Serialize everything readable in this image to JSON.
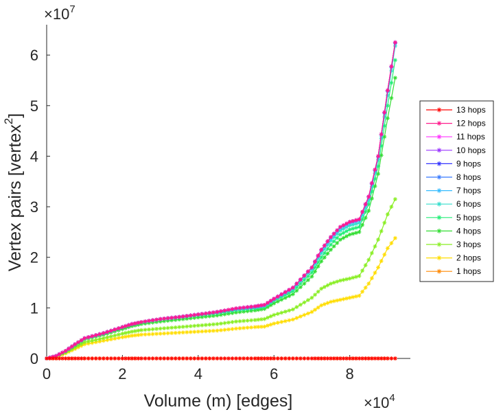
{
  "chart_data": {
    "type": "line",
    "title": "",
    "xlabel": "Volume (m) [edges]",
    "ylabel": "Vertex pairs [vertex",
    "ylabel_superscript": "2",
    "ylabel_close": "]",
    "x_exponent_label": "×10",
    "x_exponent": "4",
    "y_exponent_label": "×10",
    "y_exponent": "7",
    "xlim": [
      0,
      9.6
    ],
    "ylim": [
      0,
      6.6
    ],
    "x_ticks": [
      0,
      2,
      4,
      6,
      8
    ],
    "x_tick_labels": [
      "0",
      "2",
      "4",
      "6",
      "8"
    ],
    "y_ticks": [
      0,
      1,
      2,
      3,
      4,
      5,
      6
    ],
    "y_tick_labels": [
      "0",
      "1",
      "2",
      "3",
      "4",
      "5",
      "6"
    ],
    "grid": false,
    "legend_position": "right",
    "x": [
      0,
      0.25,
      0.5,
      0.75,
      1.0,
      1.5,
      2.0,
      2.25,
      2.5,
      3.0,
      3.5,
      4.0,
      4.5,
      5.0,
      5.5,
      5.75,
      6.0,
      6.5,
      7.0,
      7.25,
      7.5,
      7.75,
      8.0,
      8.25,
      8.5,
      8.75,
      9.0,
      9.2
    ],
    "series": [
      {
        "name": "13 hops",
        "color": "#ff0000",
        "values": [
          0,
          0,
          0,
          0,
          0,
          0,
          0,
          0,
          0,
          0,
          0,
          0,
          0,
          0,
          0,
          0,
          0,
          0,
          0,
          0,
          0,
          0,
          0,
          0,
          0,
          0,
          0,
          0
        ]
      },
      {
        "name": "12 hops",
        "color": "#ff1a8c",
        "values": [
          0,
          0.05,
          0.15,
          0.28,
          0.4,
          0.5,
          0.62,
          0.68,
          0.72,
          0.78,
          0.82,
          0.87,
          0.92,
          0.99,
          1.03,
          1.06,
          1.18,
          1.4,
          1.8,
          2.15,
          2.4,
          2.6,
          2.7,
          2.75,
          3.2,
          4.0,
          5.3,
          6.25
        ]
      },
      {
        "name": "11 hops",
        "color": "#ff33ff",
        "values": [
          0,
          0.05,
          0.15,
          0.28,
          0.4,
          0.5,
          0.62,
          0.68,
          0.72,
          0.78,
          0.82,
          0.87,
          0.92,
          0.99,
          1.03,
          1.06,
          1.18,
          1.4,
          1.8,
          2.15,
          2.4,
          2.6,
          2.7,
          2.75,
          3.2,
          4.0,
          5.3,
          6.25
        ]
      },
      {
        "name": "10 hops",
        "color": "#9933ff",
        "values": [
          0,
          0.05,
          0.15,
          0.28,
          0.4,
          0.5,
          0.62,
          0.68,
          0.72,
          0.78,
          0.82,
          0.87,
          0.92,
          0.99,
          1.03,
          1.06,
          1.18,
          1.4,
          1.8,
          2.15,
          2.4,
          2.6,
          2.7,
          2.75,
          3.2,
          4.0,
          5.3,
          6.25
        ]
      },
      {
        "name": "9 hops",
        "color": "#3333ff",
        "values": [
          0,
          0.05,
          0.15,
          0.28,
          0.4,
          0.5,
          0.62,
          0.68,
          0.72,
          0.78,
          0.82,
          0.87,
          0.92,
          0.99,
          1.03,
          1.06,
          1.18,
          1.4,
          1.8,
          2.15,
          2.4,
          2.6,
          2.7,
          2.75,
          3.2,
          4.0,
          5.3,
          6.25
        ]
      },
      {
        "name": "8 hops",
        "color": "#3377ff",
        "values": [
          0,
          0.05,
          0.15,
          0.28,
          0.4,
          0.5,
          0.62,
          0.68,
          0.72,
          0.78,
          0.82,
          0.87,
          0.92,
          0.99,
          1.03,
          1.06,
          1.18,
          1.4,
          1.8,
          2.15,
          2.4,
          2.6,
          2.7,
          2.75,
          3.2,
          4.0,
          5.3,
          6.25
        ]
      },
      {
        "name": "7 hops",
        "color": "#33bbff",
        "values": [
          0,
          0.05,
          0.15,
          0.28,
          0.4,
          0.5,
          0.62,
          0.68,
          0.72,
          0.78,
          0.82,
          0.87,
          0.92,
          0.98,
          1.02,
          1.05,
          1.17,
          1.39,
          1.79,
          2.13,
          2.38,
          2.58,
          2.68,
          2.73,
          3.18,
          3.98,
          5.28,
          6.23
        ]
      },
      {
        "name": "6 hops",
        "color": "#33ddcc",
        "values": [
          0,
          0.05,
          0.15,
          0.28,
          0.4,
          0.5,
          0.62,
          0.68,
          0.72,
          0.78,
          0.82,
          0.87,
          0.91,
          0.97,
          1.01,
          1.04,
          1.16,
          1.37,
          1.76,
          2.08,
          2.33,
          2.53,
          2.63,
          2.68,
          3.13,
          3.93,
          5.2,
          6.18
        ]
      },
      {
        "name": "5 hops",
        "color": "#22ee77",
        "values": [
          0,
          0.05,
          0.14,
          0.27,
          0.39,
          0.49,
          0.61,
          0.67,
          0.71,
          0.77,
          0.81,
          0.85,
          0.89,
          0.95,
          0.99,
          1.02,
          1.14,
          1.33,
          1.7,
          2.0,
          2.25,
          2.45,
          2.55,
          2.6,
          3.05,
          3.8,
          5.0,
          5.9
        ]
      },
      {
        "name": "4 hops",
        "color": "#33dd33",
        "values": [
          0,
          0.05,
          0.14,
          0.26,
          0.38,
          0.47,
          0.58,
          0.64,
          0.68,
          0.73,
          0.77,
          0.81,
          0.85,
          0.91,
          0.95,
          0.98,
          1.09,
          1.27,
          1.62,
          1.92,
          2.15,
          2.35,
          2.45,
          2.5,
          2.92,
          3.65,
          4.75,
          5.55
        ]
      },
      {
        "name": "3 hops",
        "color": "#88ee22",
        "values": [
          0,
          0.04,
          0.12,
          0.22,
          0.32,
          0.4,
          0.49,
          0.53,
          0.56,
          0.59,
          0.62,
          0.65,
          0.68,
          0.73,
          0.76,
          0.78,
          0.86,
          0.97,
          1.2,
          1.38,
          1.48,
          1.54,
          1.58,
          1.63,
          1.95,
          2.35,
          2.85,
          3.15
        ]
      },
      {
        "name": "2 hops",
        "color": "#ffdd00",
        "values": [
          0,
          0.03,
          0.1,
          0.19,
          0.28,
          0.35,
          0.42,
          0.45,
          0.47,
          0.49,
          0.51,
          0.53,
          0.55,
          0.59,
          0.62,
          0.63,
          0.69,
          0.77,
          0.92,
          1.05,
          1.12,
          1.16,
          1.2,
          1.24,
          1.48,
          1.8,
          2.18,
          2.38
        ]
      },
      {
        "name": "1 hops",
        "color": "#ff8800",
        "values": [
          0,
          0,
          0,
          0,
          0,
          0,
          0,
          0,
          0,
          0,
          0,
          0,
          0,
          0,
          0,
          0,
          0,
          0,
          0,
          0,
          0,
          0,
          0,
          0,
          0,
          0,
          0,
          0
        ]
      }
    ]
  }
}
